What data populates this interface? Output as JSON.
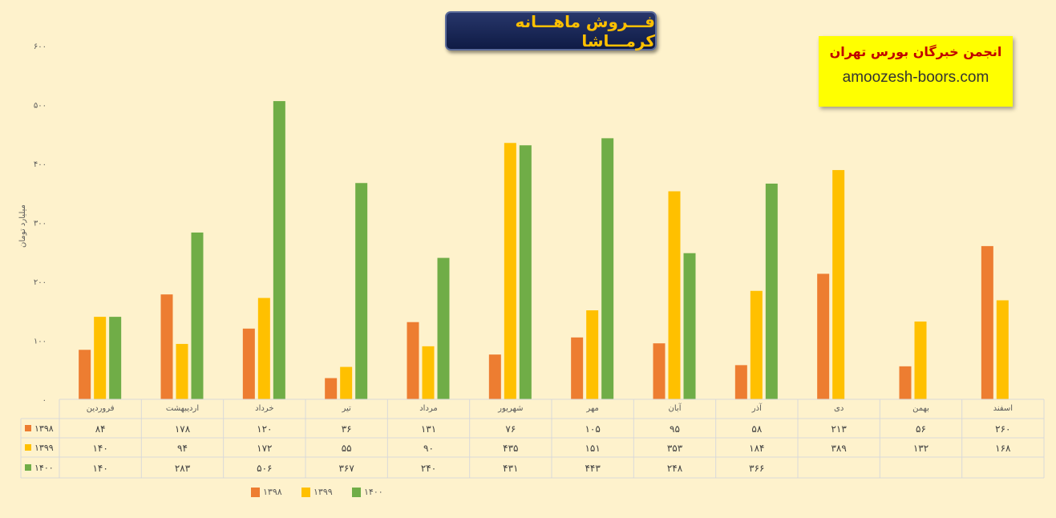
{
  "header": {
    "title": "فـــروش ماهـــانه کرمـــاشا"
  },
  "brand": {
    "name": "انجمن خبرگان بورس تهران",
    "url": "amoozesh-boors.com",
    "background": "#FFFF00",
    "name_color": "#C00000"
  },
  "chart_data": {
    "type": "bar",
    "ylabel": "میلیارد تومان",
    "ylim": [
      0,
      600
    ],
    "yticks": [
      "۰",
      "۱۰۰",
      "۲۰۰",
      "۳۰۰",
      "۴۰۰",
      "۵۰۰",
      "۶۰۰"
    ],
    "grid": false,
    "legend_position": "bottom",
    "categories": [
      "فروردین",
      "اردیبهشت",
      "خرداد",
      "تیر",
      "مرداد",
      "شهریور",
      "مهر",
      "آبان",
      "آذر",
      "دی",
      "بهمن",
      "اسفند"
    ],
    "series": [
      {
        "name": "۱۳۹۸",
        "color": "#ED7D31",
        "values": [
          84,
          178,
          120,
          36,
          131,
          76,
          105,
          95,
          58,
          213,
          56,
          260
        ],
        "labels": [
          "۸۴",
          "۱۷۸",
          "۱۲۰",
          "۳۶",
          "۱۳۱",
          "۷۶",
          "۱۰۵",
          "۹۵",
          "۵۸",
          "۲۱۳",
          "۵۶",
          "۲۶۰"
        ]
      },
      {
        "name": "۱۳۹۹",
        "color": "#FFC000",
        "values": [
          140,
          94,
          172,
          55,
          90,
          435,
          151,
          353,
          184,
          389,
          132,
          168
        ],
        "labels": [
          "۱۴۰",
          "۹۴",
          "۱۷۲",
          "۵۵",
          "۹۰",
          "۴۳۵",
          "۱۵۱",
          "۳۵۳",
          "۱۸۴",
          "۳۸۹",
          "۱۳۲",
          "۱۶۸"
        ]
      },
      {
        "name": "۱۴۰۰",
        "color": "#70AD47",
        "values": [
          140,
          283,
          506,
          367,
          240,
          431,
          443,
          248,
          366,
          null,
          null,
          null
        ],
        "labels": [
          "۱۴۰",
          "۲۸۳",
          "۵۰۶",
          "۳۶۷",
          "۲۴۰",
          "۴۳۱",
          "۴۴۳",
          "۲۴۸",
          "۳۶۶",
          "",
          "",
          ""
        ]
      }
    ]
  }
}
